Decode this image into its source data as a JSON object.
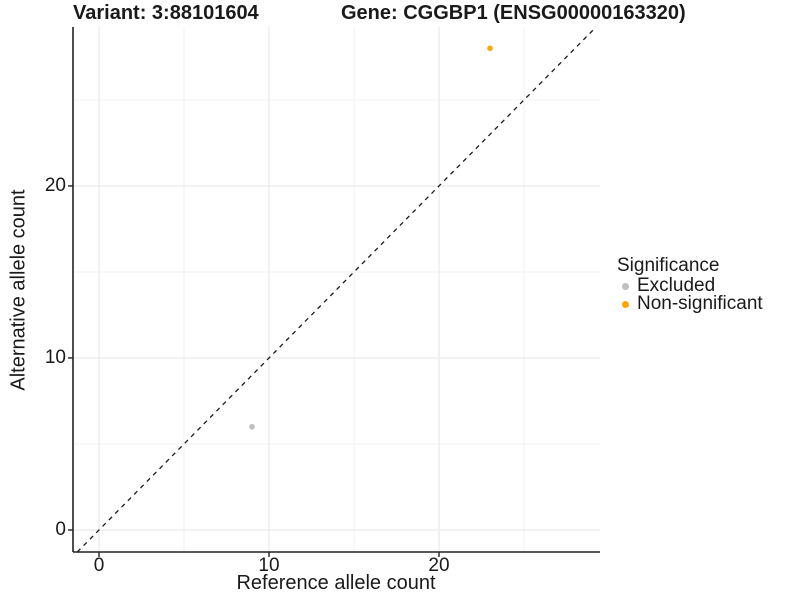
{
  "titles": {
    "variant": "Variant: 3:88101604",
    "gene": "Gene: CGGBP1 (ENSG00000163320)"
  },
  "chart_data": {
    "type": "scatter",
    "xlabel": "Reference allele count",
    "ylabel": "Alternative allele count",
    "xlim": [
      -1.53,
      29.47
    ],
    "ylim": [
      -1.28,
      29.24
    ],
    "x_ticks": [
      0,
      10,
      20
    ],
    "y_ticks": [
      0,
      10,
      20
    ],
    "x_minor": [
      5,
      15,
      25
    ],
    "y_minor": [
      5,
      15,
      25
    ],
    "grid": true,
    "series": [
      {
        "name": "Excluded",
        "color": "#BEBEBE",
        "points": [
          {
            "x": 9,
            "y": 6
          }
        ]
      },
      {
        "name": "Non-significant",
        "color": "#FFA500",
        "points": [
          {
            "x": 23,
            "y": 28
          }
        ]
      }
    ],
    "reference_line": {
      "type": "identity",
      "equation": "y = x",
      "style": "dashed",
      "color": "#1a1a1a"
    },
    "legend": {
      "title": "Significance",
      "position": "right"
    }
  },
  "colors": {
    "excluded": "#BEBEBE",
    "non_significant": "#FFA500",
    "grid_major": "#e6e6e6",
    "grid_minor": "#f2f2f2",
    "axis": "#222222",
    "text": "#1a1a1a",
    "background": "#ffffff"
  }
}
